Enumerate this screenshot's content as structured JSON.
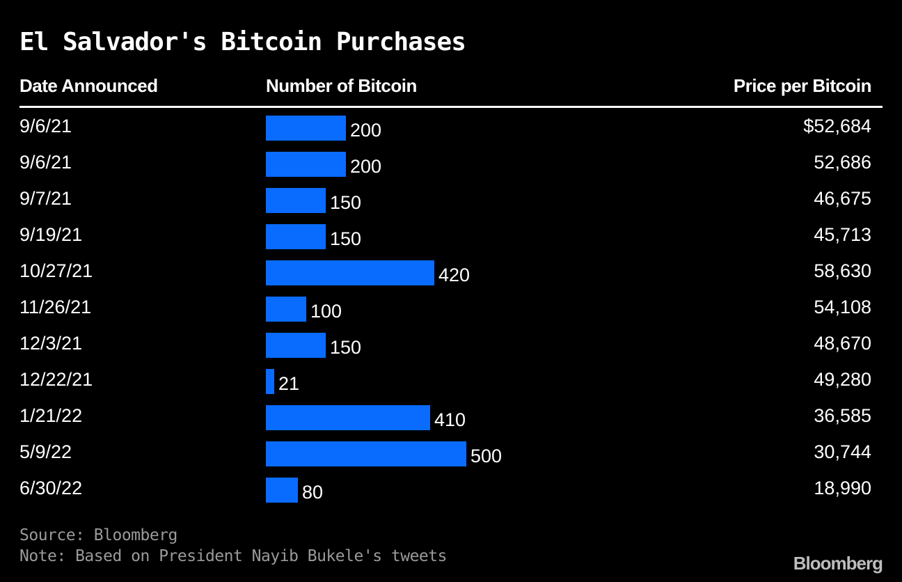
{
  "title": "El Salvador's Bitcoin Purchases",
  "headers": {
    "date": "Date Announced",
    "number": "Number of Bitcoin",
    "price": "Price per Bitcoin"
  },
  "colors": {
    "background": "#000000",
    "bar": "#0a6cff",
    "text": "#ffffff",
    "footnote": "#9a9a9a"
  },
  "chart_data": {
    "type": "bar",
    "orientation": "horizontal",
    "title": "El Salvador's Bitcoin Purchases",
    "categories": [
      "9/6/21",
      "9/6/21",
      "9/7/21",
      "9/19/21",
      "10/27/21",
      "11/26/21",
      "12/3/21",
      "12/22/21",
      "1/21/22",
      "5/9/22",
      "6/30/22"
    ],
    "series": [
      {
        "name": "Number of Bitcoin",
        "values": [
          200,
          200,
          150,
          150,
          420,
          100,
          150,
          21,
          410,
          500,
          80
        ]
      }
    ],
    "xlim": [
      0,
      500
    ],
    "grid": false,
    "table_columns": {
      "Price per Bitcoin": [
        "$52,684",
        "52,686",
        "46,675",
        "45,713",
        "58,630",
        "54,108",
        "48,670",
        "49,280",
        "36,585",
        "30,744",
        "18,990"
      ]
    }
  },
  "rows": [
    {
      "date": "9/6/21",
      "count": 200,
      "count_label": "200",
      "price": "$52,684"
    },
    {
      "date": "9/6/21",
      "count": 200,
      "count_label": "200",
      "price": "52,686"
    },
    {
      "date": "9/7/21",
      "count": 150,
      "count_label": "150",
      "price": "46,675"
    },
    {
      "date": "9/19/21",
      "count": 150,
      "count_label": "150",
      "price": "45,713"
    },
    {
      "date": "10/27/21",
      "count": 420,
      "count_label": "420",
      "price": "58,630"
    },
    {
      "date": "11/26/21",
      "count": 100,
      "count_label": "100",
      "price": "54,108"
    },
    {
      "date": "12/3/21",
      "count": 150,
      "count_label": "150",
      "price": "48,670"
    },
    {
      "date": "12/22/21",
      "count": 21,
      "count_label": "21",
      "price": "49,280"
    },
    {
      "date": "1/21/22",
      "count": 410,
      "count_label": "410",
      "price": "36,585"
    },
    {
      "date": "5/9/22",
      "count": 500,
      "count_label": "500",
      "price": "30,744"
    },
    {
      "date": "6/30/22",
      "count": 80,
      "count_label": "80",
      "price": "18,990"
    }
  ],
  "footer": {
    "source": "Source: Bloomberg",
    "note": "Note: Based on President Nayib Bukele's tweets",
    "logo": "Bloomberg"
  }
}
